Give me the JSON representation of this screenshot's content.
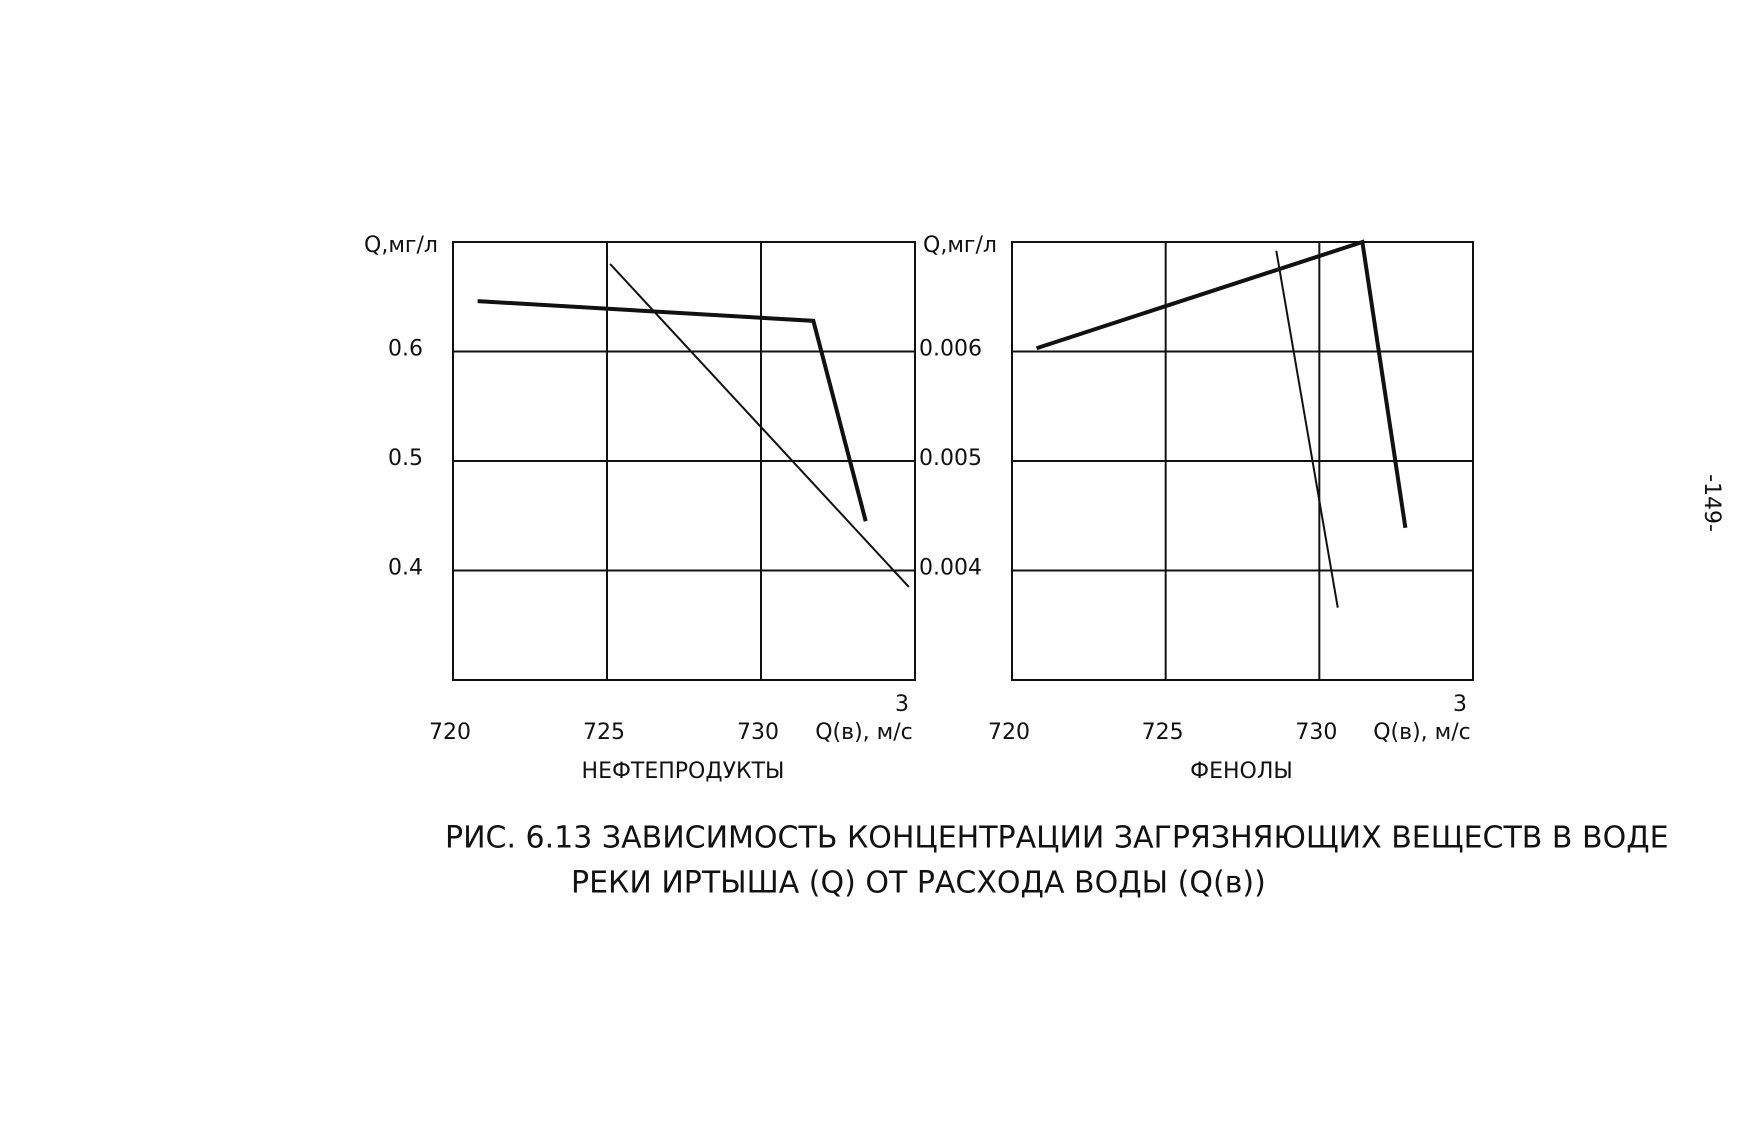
{
  "chart_data": [
    {
      "type": "line",
      "title": "НЕФТЕПРОДУКТЫ",
      "ylabel": "Q,мг/л",
      "xlabel": "Q(в), м/с",
      "xlabel_sup": "3",
      "xlim": [
        720,
        735
      ],
      "xticks": [
        720,
        725,
        730
      ],
      "ylim": [
        0.3,
        0.7
      ],
      "yticks": [
        0.4,
        0.5,
        0.6
      ],
      "grid": true,
      "series": [
        {
          "color": "#111111",
          "x": [
            720.8,
            731.7,
            733.4
          ],
          "values": [
            0.646,
            0.628,
            0.445
          ]
        },
        {
          "color": "#111111",
          "x": [
            725.1,
            734.8
          ],
          "values": [
            0.68,
            0.385
          ]
        }
      ]
    },
    {
      "type": "line",
      "title": "ФЕНОЛЫ",
      "ylabel": "Q,мг/л",
      "xlabel": "Q(в), м/с",
      "xlabel_sup": "3",
      "xlim": [
        720,
        735
      ],
      "xticks": [
        720,
        725,
        730
      ],
      "ylim": [
        0.003,
        0.007
      ],
      "yticks": [
        0.004,
        0.005,
        0.006
      ],
      "grid": true,
      "series": [
        {
          "color": "#111111",
          "x": [
            720.8,
            731.4,
            732.8
          ],
          "values": [
            0.00603,
            0.007,
            0.00439
          ]
        },
        {
          "color": "#111111",
          "x": [
            728.6,
            730.6
          ],
          "values": [
            0.00692,
            0.00366
          ]
        }
      ]
    }
  ],
  "caption": {
    "lines": [
      "РИС. 6.13 ЗАВИСИМОСТЬ КОНЦЕНТРАЦИИ ЗАГРЯЗНЯЮЩИХ ВЕЩЕСТВ В ВОДЕ",
      "РЕКИ ИРТЫША (Q) ОТ РАСХОДА ВОДЫ (Q(в))"
    ]
  },
  "page_number": "-149-"
}
